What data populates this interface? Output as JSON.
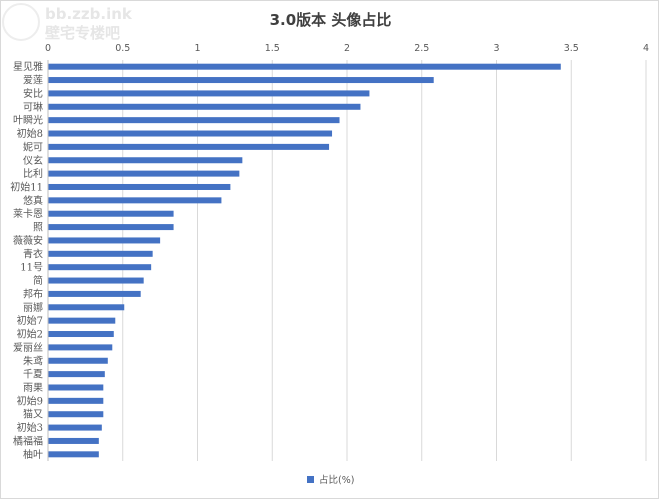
{
  "chart_data": {
    "type": "bar",
    "orientation": "horizontal",
    "title": "3.0版本 头像占比",
    "categories": [
      "星见雅",
      "爱莲",
      "安比",
      "可琳",
      "叶瞬光",
      "初始8",
      "妮可",
      "仪玄",
      "比利",
      "初始11",
      "悠真",
      "莱卡恩",
      "照",
      "薇薇安",
      "青衣",
      "11号",
      "简",
      "邦布",
      "丽娜",
      "初始7",
      "初始2",
      "爱丽丝",
      "朱鸢",
      "千夏",
      "雨果",
      "初始9",
      "猫又",
      "初始3",
      "橘福福",
      "柚叶"
    ],
    "series": [
      {
        "name": "占比(%)",
        "color": "#4472c4",
        "values": [
          3.43,
          2.58,
          2.15,
          2.09,
          1.95,
          1.9,
          1.88,
          1.3,
          1.28,
          1.22,
          1.16,
          0.84,
          0.84,
          0.75,
          0.7,
          0.69,
          0.64,
          0.62,
          0.51,
          0.45,
          0.44,
          0.43,
          0.4,
          0.38,
          0.37,
          0.37,
          0.37,
          0.36,
          0.34,
          0.34
        ]
      }
    ],
    "xlim": [
      0,
      4
    ],
    "x_ticks": [
      "0",
      "0.5",
      "1",
      "1.5",
      "2",
      "2.5",
      "3",
      "3.5",
      "4"
    ],
    "x_axis_position": "top",
    "grid": true,
    "legend_position": "bottom"
  },
  "watermark": {
    "line1": "bb.zzb.ink",
    "line2": "壁宅专楼吧"
  }
}
